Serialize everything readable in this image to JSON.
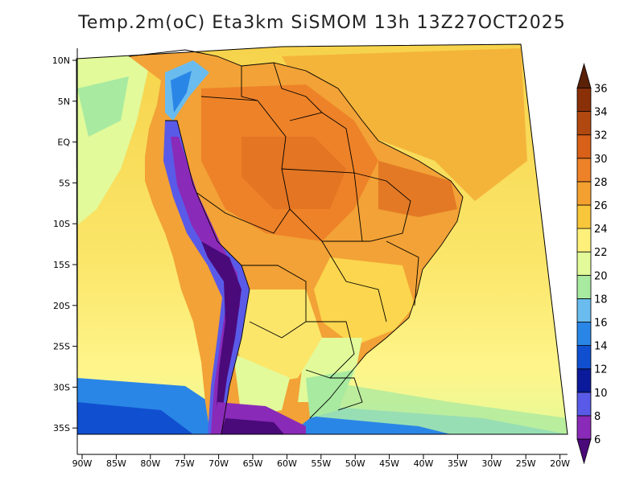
{
  "title": "Temp.2m(oC) Eta3km SiSMOM 13h 13Z27OCT2025",
  "lat_labels": [
    "10N",
    "5N",
    "EQ",
    "5S",
    "10S",
    "15S",
    "20S",
    "25S",
    "30S",
    "35S"
  ],
  "lon_labels": [
    "90W",
    "85W",
    "80W",
    "75W",
    "70W",
    "65W",
    "60W",
    "55W",
    "50W",
    "45W",
    "40W",
    "35W",
    "30W",
    "25W",
    "20W"
  ],
  "colorbar": {
    "labels": [
      "6",
      "8",
      "10",
      "12",
      "14",
      "16",
      "18",
      "20",
      "22",
      "24",
      "26",
      "28",
      "30",
      "32",
      "34",
      "36"
    ],
    "colors": [
      "#4a0a7a",
      "#8a2ab8",
      "#5a5ae8",
      "#0a1a9a",
      "#1050d0",
      "#2a86e6",
      "#6abcee",
      "#a8eaa0",
      "#e2fa9a",
      "#fef07a",
      "#f8c63a",
      "#f4a030",
      "#ee8228",
      "#d86018",
      "#b04810",
      "#8a3008",
      "#5a2008"
    ]
  },
  "colors": {
    "ocean_base": "#fbe66a",
    "land_base": "#f2a236",
    "border": "#000000"
  }
}
